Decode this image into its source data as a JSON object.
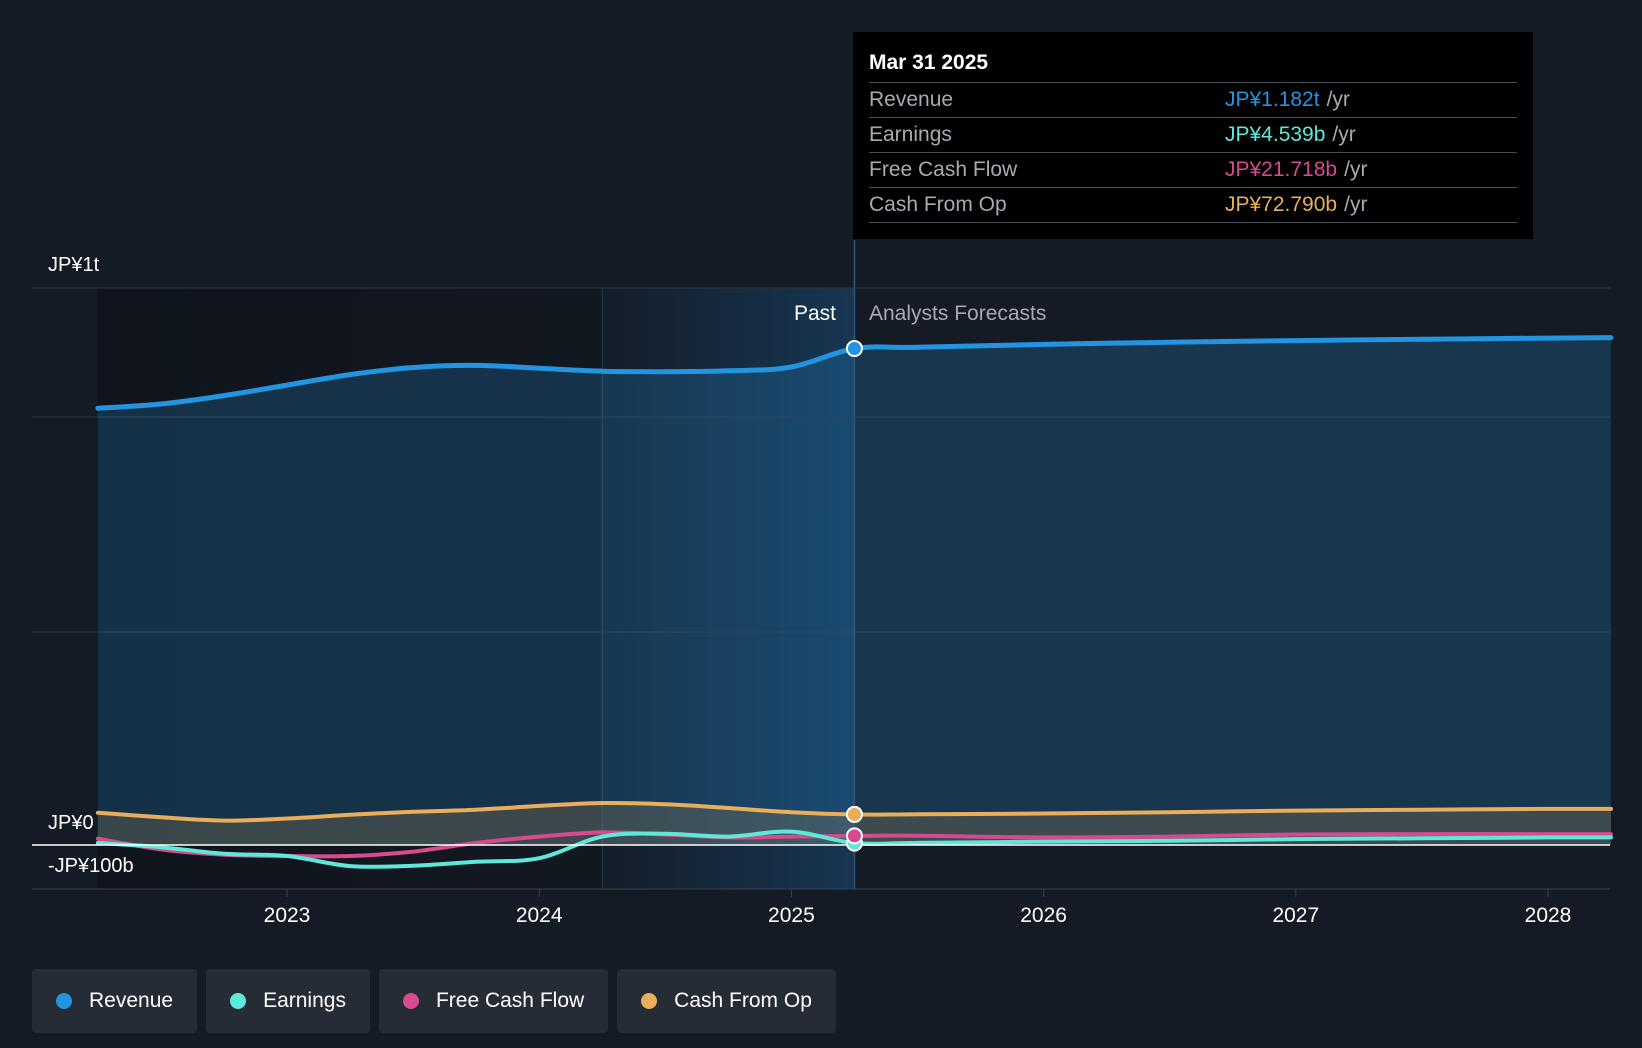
{
  "chart_data": {
    "type": "area",
    "x_range": [
      2022.25,
      2028.25
    ],
    "ylim": [
      -100,
      1300
    ],
    "y_axis_labels": [
      "JP¥1t",
      "JP¥0",
      "-JP¥100b"
    ],
    "x_ticks": [
      {
        "value": 2023,
        "label": "2023"
      },
      {
        "value": 2024,
        "label": "2024"
      },
      {
        "value": 2025,
        "label": "2025"
      },
      {
        "value": 2026,
        "label": "2026"
      },
      {
        "value": 2027,
        "label": "2027"
      },
      {
        "value": 2028,
        "label": "2028"
      }
    ],
    "highlight_start": 2024.25,
    "divider_x": 2025.25,
    "past_label": "Past",
    "forecast_label": "Analysts Forecasts",
    "series": [
      {
        "name": "Revenue",
        "color": "#2394df",
        "points": [
          [
            2022.25,
            1040
          ],
          [
            2022.5,
            1050
          ],
          [
            2022.75,
            1070
          ],
          [
            2023.0,
            1095
          ],
          [
            2023.25,
            1120
          ],
          [
            2023.5,
            1137
          ],
          [
            2023.75,
            1142
          ],
          [
            2024.0,
            1135
          ],
          [
            2024.25,
            1128
          ],
          [
            2024.5,
            1127
          ],
          [
            2024.75,
            1129
          ],
          [
            2025.0,
            1138
          ],
          [
            2025.25,
            1182
          ],
          [
            2025.5,
            1185
          ],
          [
            2026.0,
            1192
          ],
          [
            2026.5,
            1197
          ],
          [
            2027.0,
            1201
          ],
          [
            2027.5,
            1204
          ],
          [
            2028.0,
            1207
          ],
          [
            2028.25,
            1208
          ]
        ]
      },
      {
        "name": "Earnings",
        "color": "#5ee8d8",
        "points": [
          [
            2022.25,
            5
          ],
          [
            2022.5,
            -5
          ],
          [
            2022.75,
            -20
          ],
          [
            2023.0,
            -25
          ],
          [
            2023.25,
            -48
          ],
          [
            2023.5,
            -47
          ],
          [
            2023.75,
            -38
          ],
          [
            2024.0,
            -30
          ],
          [
            2024.25,
            20
          ],
          [
            2024.5,
            27
          ],
          [
            2024.75,
            20
          ],
          [
            2025.0,
            32
          ],
          [
            2025.25,
            4.539
          ],
          [
            2025.5,
            5
          ],
          [
            2026.0,
            8
          ],
          [
            2026.5,
            10
          ],
          [
            2027.0,
            14
          ],
          [
            2027.5,
            16
          ],
          [
            2028.0,
            18
          ],
          [
            2028.25,
            18
          ]
        ]
      },
      {
        "name": "Free Cash Flow",
        "color": "#d84a8e",
        "points": [
          [
            2022.25,
            15
          ],
          [
            2022.5,
            -10
          ],
          [
            2022.75,
            -22
          ],
          [
            2023.0,
            -25
          ],
          [
            2023.25,
            -25
          ],
          [
            2023.5,
            -15
          ],
          [
            2023.75,
            5
          ],
          [
            2024.0,
            20
          ],
          [
            2024.25,
            30
          ],
          [
            2024.5,
            25
          ],
          [
            2024.75,
            18
          ],
          [
            2025.0,
            20
          ],
          [
            2025.25,
            21.718
          ],
          [
            2025.5,
            22
          ],
          [
            2026.0,
            18
          ],
          [
            2026.5,
            20
          ],
          [
            2027.0,
            25
          ],
          [
            2027.5,
            26
          ],
          [
            2028.0,
            26
          ],
          [
            2028.25,
            26
          ]
        ]
      },
      {
        "name": "Cash From Op",
        "color": "#e8ae5b",
        "points": [
          [
            2022.25,
            77
          ],
          [
            2022.5,
            66
          ],
          [
            2022.75,
            58
          ],
          [
            2023.0,
            63
          ],
          [
            2023.25,
            72
          ],
          [
            2023.5,
            79
          ],
          [
            2023.75,
            84
          ],
          [
            2024.0,
            93
          ],
          [
            2024.25,
            100
          ],
          [
            2024.5,
            97
          ],
          [
            2024.75,
            88
          ],
          [
            2025.0,
            78
          ],
          [
            2025.25,
            72.79
          ],
          [
            2025.5,
            73
          ],
          [
            2026.0,
            75
          ],
          [
            2026.5,
            78
          ],
          [
            2027.0,
            82
          ],
          [
            2027.5,
            84
          ],
          [
            2028.0,
            86
          ],
          [
            2028.25,
            86
          ]
        ]
      }
    ]
  },
  "tooltip": {
    "date": "Mar 31 2025",
    "rows": [
      {
        "label": "Revenue",
        "value": "JP¥1.182t",
        "unit": "/yr",
        "color": "#2394df"
      },
      {
        "label": "Earnings",
        "value": "JP¥4.539b",
        "unit": "/yr",
        "color": "#5ee8d8"
      },
      {
        "label": "Free Cash Flow",
        "value": "JP¥21.718b",
        "unit": "/yr",
        "color": "#d84a8e"
      },
      {
        "label": "Cash From Op",
        "value": "JP¥72.790b",
        "unit": "/yr",
        "color": "#e8ae5b"
      }
    ]
  },
  "legend": [
    {
      "label": "Revenue",
      "color": "#2394df"
    },
    {
      "label": "Earnings",
      "color": "#5ee8d8"
    },
    {
      "label": "Free Cash Flow",
      "color": "#d84a8e"
    },
    {
      "label": "Cash From Op",
      "color": "#e8ae5b"
    }
  ]
}
